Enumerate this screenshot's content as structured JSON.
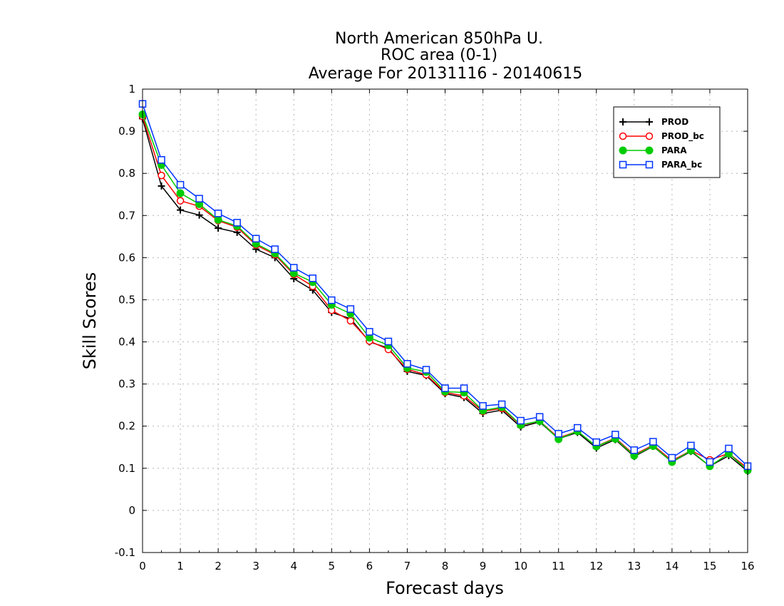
{
  "chart_data": {
    "type": "line",
    "title": [
      "North American 850hPa U.",
      "ROC area (0-1)",
      "Average For 20131116 - 20140615"
    ],
    "xlabel": "Forecast days",
    "ylabel": "Skill Scores",
    "xlim": [
      0,
      16
    ],
    "ylim": [
      -0.1,
      1
    ],
    "xticks": [
      "0",
      "1",
      "2",
      "3",
      "4",
      "5",
      "6",
      "7",
      "8",
      "9",
      "10",
      "11",
      "12",
      "13",
      "14",
      "15",
      "16"
    ],
    "yticks": [
      "-0.1",
      "0",
      "0.1",
      "0.2",
      "0.3",
      "0.4",
      "0.5",
      "0.6",
      "0.7",
      "0.8",
      "0.9",
      "1"
    ],
    "grid": true,
    "legend_position": "top-right",
    "x": [
      0,
      0.5,
      1,
      1.5,
      2,
      2.5,
      3,
      3.5,
      4,
      4.5,
      5,
      5.5,
      6,
      6.5,
      7,
      7.5,
      8,
      8.5,
      9,
      9.5,
      10,
      10.5,
      11,
      11.5,
      12,
      12.5,
      13,
      13.5,
      14,
      14.5,
      15,
      15.5,
      16
    ],
    "series": [
      {
        "name": "PROD",
        "color": "#000000",
        "marker": "plus",
        "values": [
          0.93,
          0.77,
          0.713,
          0.701,
          0.67,
          0.66,
          0.62,
          0.6,
          0.55,
          0.523,
          0.47,
          0.455,
          0.4,
          0.385,
          0.33,
          0.32,
          0.277,
          0.268,
          0.23,
          0.238,
          0.198,
          0.21,
          0.17,
          0.185,
          0.148,
          0.168,
          0.128,
          0.152,
          0.115,
          0.14,
          0.105,
          0.13,
          0.093
        ]
      },
      {
        "name": "PROD_bc",
        "color": "#ff0000",
        "marker": "open-circle",
        "values": [
          0.935,
          0.795,
          0.735,
          0.722,
          0.688,
          0.672,
          0.63,
          0.607,
          0.56,
          0.532,
          0.475,
          0.45,
          0.402,
          0.382,
          0.335,
          0.322,
          0.28,
          0.272,
          0.235,
          0.242,
          0.202,
          0.212,
          0.172,
          0.188,
          0.152,
          0.172,
          0.132,
          0.155,
          0.118,
          0.142,
          0.12,
          0.135,
          0.1
        ]
      },
      {
        "name": "PARA",
        "color": "#00cc00",
        "marker": "filled-circle",
        "values": [
          0.94,
          0.82,
          0.753,
          0.727,
          0.69,
          0.675,
          0.633,
          0.61,
          0.563,
          0.542,
          0.488,
          0.467,
          0.41,
          0.392,
          0.338,
          0.329,
          0.282,
          0.28,
          0.237,
          0.245,
          0.203,
          0.212,
          0.169,
          0.188,
          0.152,
          0.17,
          0.13,
          0.153,
          0.115,
          0.142,
          0.105,
          0.135,
          0.095
        ]
      },
      {
        "name": "PARA_bc",
        "color": "#0033ff",
        "marker": "open-square",
        "values": [
          0.965,
          0.832,
          0.773,
          0.74,
          0.705,
          0.683,
          0.645,
          0.62,
          0.576,
          0.551,
          0.499,
          0.478,
          0.424,
          0.401,
          0.348,
          0.334,
          0.29,
          0.29,
          0.248,
          0.252,
          0.213,
          0.222,
          0.182,
          0.196,
          0.162,
          0.18,
          0.143,
          0.163,
          0.125,
          0.154,
          0.115,
          0.147,
          0.105
        ]
      }
    ]
  }
}
